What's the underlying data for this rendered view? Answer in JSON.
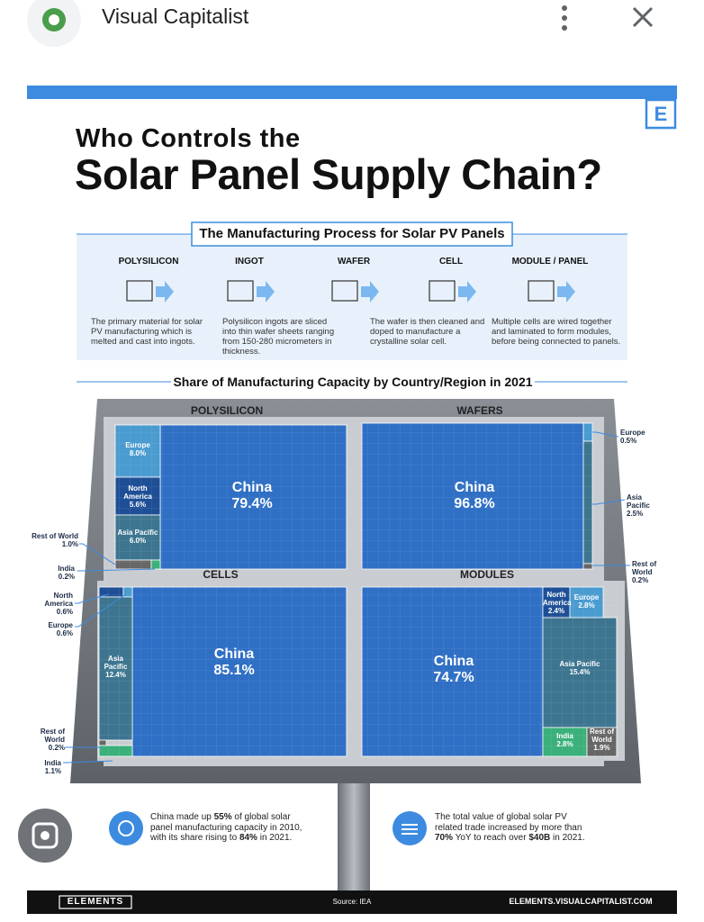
{
  "app_bar": {
    "title": "Visual Capitalist"
  },
  "infographic": {
    "logo": "E",
    "title_line1": "Who Controls the",
    "title_line2": "Solar Panel Supply Chain?",
    "process": {
      "title": "The Manufacturing Process for Solar PV Panels",
      "steps": [
        {
          "name": "POLYSILICON",
          "description": "The primary material for solar PV manufacturing which is melted and cast into ingots."
        },
        {
          "name": "INGOT",
          "description": "Polysilicon ingots are sliced into thin wafer sheets ranging from 150-280 micrometers in thickness."
        },
        {
          "name": "WAFER",
          "description": "The wafer is then cleaned and doped to manufacture a crystalline solar cell."
        },
        {
          "name": "CELL",
          "description": ""
        },
        {
          "name": "MODULE / PANEL",
          "description": "Multiple cells are wired together and laminated to form modules, before being connected to panels."
        }
      ]
    },
    "share_title": "Share of Manufacturing Capacity by Country/Region in 2021",
    "panels": [
      {
        "name": "POLYSILICON",
        "segments": [
          {
            "name": "China",
            "value": "79.4%"
          },
          {
            "name": "Europe",
            "value": "8.0%"
          },
          {
            "name": "North America",
            "value": "5.6%"
          },
          {
            "name": "Asia Pacific",
            "value": "6.0%"
          },
          {
            "name": "Rest of World",
            "value": "1.0%"
          },
          {
            "name": "India",
            "value": "0.2%"
          }
        ]
      },
      {
        "name": "WAFERS",
        "segments": [
          {
            "name": "China",
            "value": "96.8%"
          },
          {
            "name": "Europe",
            "value": "0.5%"
          },
          {
            "name": "Asia Pacific",
            "value": "2.5%"
          },
          {
            "name": "Rest of World",
            "value": "0.2%"
          }
        ]
      },
      {
        "name": "CELLS",
        "segments": [
          {
            "name": "China",
            "value": "85.1%"
          },
          {
            "name": "North America",
            "value": "0.6%"
          },
          {
            "name": "Europe",
            "value": "0.6%"
          },
          {
            "name": "Asia Pacific",
            "value": "12.4%"
          },
          {
            "name": "Rest of World",
            "value": "0.2%"
          },
          {
            "name": "India",
            "value": "1.1%"
          }
        ]
      },
      {
        "name": "MODULES",
        "segments": [
          {
            "name": "China",
            "value": "74.7%"
          },
          {
            "name": "North America",
            "value": "2.4%"
          },
          {
            "name": "Europe",
            "value": "2.8%"
          },
          {
            "name": "Asia Pacific",
            "value": "15.4%"
          },
          {
            "name": "India",
            "value": "2.8%"
          },
          {
            "name": "Rest of World",
            "value": "1.9%"
          }
        ]
      }
    ],
    "facts": [
      {
        "parts": [
          "China made up ",
          "55%",
          " of global solar panel manufacturing capacity in 2010, with its share rising to ",
          "84%",
          " in 2021."
        ]
      },
      {
        "parts": [
          "The total value of global solar PV related trade increased by more than ",
          "70%",
          " YoY to reach over ",
          "$40B",
          " in 2021."
        ]
      }
    ],
    "footer": {
      "brand": "ELEMENTS",
      "source": "Source: IEA",
      "url": "ELEMENTS.VISUALCAPITALIST.COM"
    }
  }
}
